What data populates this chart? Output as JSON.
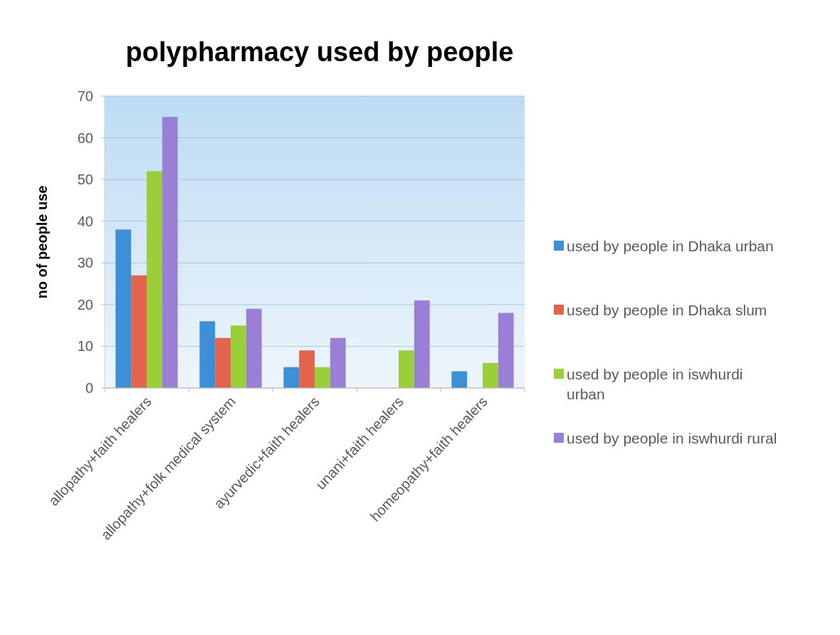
{
  "chart_data": {
    "type": "bar",
    "title": "polypharmacy used by people",
    "ylabel": "no of people use",
    "categories": [
      "allopathy+faith healers",
      "allopathy+folk medical system",
      "ayurvedic+faith healers",
      "unani+faith healers",
      "homeopathy+faith healers"
    ],
    "series": [
      {
        "name": "used by people in Dhaka urban",
        "color": "#3d8fd8",
        "values": [
          38,
          16,
          5,
          null,
          4
        ]
      },
      {
        "name": "used by people in Dhaka slum",
        "color": "#e2644d",
        "values": [
          27,
          12,
          9,
          null,
          null
        ]
      },
      {
        "name": "used by people in iswhurdi urban",
        "color": "#9bcf3a",
        "values": [
          52,
          15,
          5,
          9,
          6
        ]
      },
      {
        "name": "used by people in iswhurdi rural",
        "color": "#9a7fd6",
        "values": [
          65,
          19,
          12,
          21,
          18
        ]
      }
    ],
    "ylim": [
      0,
      70
    ],
    "yticks": [
      0,
      10,
      20,
      30,
      40,
      50,
      60,
      70
    ],
    "grid": "y",
    "legend": "right"
  }
}
